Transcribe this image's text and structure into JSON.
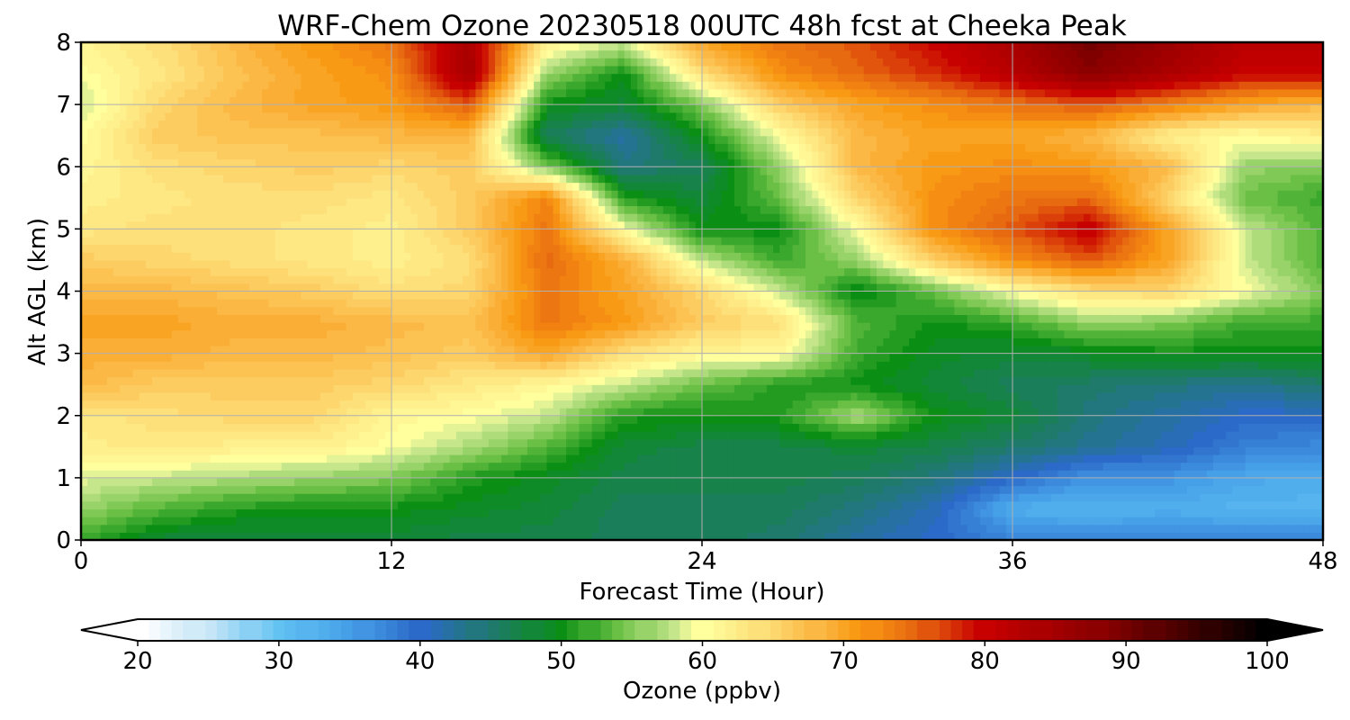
{
  "chart_data": {
    "type": "heatmap",
    "title": "WRF-Chem Ozone  20230518 00UTC 48h fcst at Cheeka Peak",
    "xlabel": "Forecast Time (Hour)",
    "ylabel": "Alt AGL (km)",
    "xlim": [
      0,
      48
    ],
    "ylim": [
      0,
      8
    ],
    "x_ticks": [
      "0",
      "12",
      "24",
      "36",
      "48"
    ],
    "y_ticks": [
      "0",
      "1",
      "2",
      "3",
      "4",
      "5",
      "6",
      "7",
      "8"
    ],
    "grid": true,
    "colorbar": {
      "label": "Ozone  (ppbv)",
      "range": [
        20,
        100
      ],
      "extend": "both",
      "ticks": [
        "20",
        "30",
        "40",
        "50",
        "60",
        "70",
        "80",
        "90",
        "100"
      ],
      "palette": [
        {
          "value": 20,
          "color": "#ffffff"
        },
        {
          "value": 25,
          "color": "#c6e6f7"
        },
        {
          "value": 30,
          "color": "#62c2f2"
        },
        {
          "value": 35,
          "color": "#46a0e8"
        },
        {
          "value": 40,
          "color": "#2c6ac9"
        },
        {
          "value": 45,
          "color": "#1f7a6c"
        },
        {
          "value": 50,
          "color": "#0a8f14"
        },
        {
          "value": 54,
          "color": "#6abf45"
        },
        {
          "value": 58,
          "color": "#c6e68c"
        },
        {
          "value": 60,
          "color": "#ffff9e"
        },
        {
          "value": 64,
          "color": "#fde07a"
        },
        {
          "value": 68,
          "color": "#fbb845"
        },
        {
          "value": 71,
          "color": "#f99a14"
        },
        {
          "value": 75,
          "color": "#e86a10"
        },
        {
          "value": 80,
          "color": "#c70000"
        },
        {
          "value": 88,
          "color": "#8c0000"
        },
        {
          "value": 95,
          "color": "#3a0000"
        },
        {
          "value": 100,
          "color": "#000000"
        }
      ]
    },
    "x": [
      0,
      3,
      6,
      9,
      12,
      15,
      18,
      21,
      24,
      27,
      30,
      33,
      36,
      39,
      42,
      45,
      48
    ],
    "y": [
      0,
      0.5,
      1,
      1.5,
      2,
      2.5,
      3,
      3.5,
      4,
      4.5,
      5,
      5.5,
      6,
      6.5,
      7,
      7.5,
      8
    ],
    "z": [
      [
        52,
        48,
        47,
        48,
        48,
        47,
        47,
        46,
        46,
        45,
        42,
        40,
        38,
        38,
        38,
        38,
        38
      ],
      [
        56,
        53,
        51,
        50,
        50,
        49,
        48,
        46,
        46,
        46,
        44,
        41,
        33,
        32,
        33,
        32,
        32
      ],
      [
        59,
        58,
        57,
        56,
        55,
        51,
        49,
        47,
        47,
        47,
        46,
        44,
        40,
        36,
        36,
        34,
        33
      ],
      [
        62,
        63,
        62,
        62,
        60,
        57,
        53,
        48,
        47,
        47,
        48,
        47,
        45,
        43,
        41,
        38,
        37
      ],
      [
        63,
        64,
        65,
        65,
        61,
        60,
        58,
        51,
        50,
        51,
        57,
        50,
        48,
        44,
        42,
        40,
        40
      ],
      [
        68,
        66,
        66,
        66,
        65,
        63,
        61,
        58,
        54,
        51,
        50,
        48,
        46,
        45,
        44,
        43,
        45
      ],
      [
        69,
        69,
        68,
        68,
        67,
        66,
        70,
        64,
        61,
        61,
        52,
        49,
        48,
        49,
        50,
        50,
        50
      ],
      [
        70,
        70,
        69,
        69,
        68,
        67,
        74,
        71,
        66,
        64,
        53,
        50,
        52,
        56,
        55,
        52,
        52
      ],
      [
        68,
        68,
        67,
        66,
        64,
        65,
        74,
        70,
        65,
        58,
        49,
        54,
        60,
        64,
        65,
        60,
        55
      ],
      [
        66,
        65,
        64,
        63,
        62,
        64,
        75,
        69,
        58,
        52,
        56,
        66,
        72,
        76,
        70,
        58,
        53
      ],
      [
        63,
        64,
        64,
        63,
        62,
        66,
        74,
        60,
        50,
        50,
        60,
        72,
        76,
        81,
        70,
        58,
        53
      ],
      [
        62,
        63,
        64,
        64,
        63,
        66,
        73,
        51,
        48,
        54,
        65,
        72,
        74,
        75,
        65,
        54,
        52
      ],
      [
        61,
        64,
        65,
        66,
        65,
        66,
        55,
        44,
        46,
        56,
        68,
        71,
        72,
        71,
        68,
        56,
        55
      ],
      [
        60,
        66,
        67,
        67,
        68,
        68,
        46,
        42,
        50,
        60,
        68,
        70,
        70,
        68,
        62,
        60,
        62
      ],
      [
        58,
        65,
        68,
        70,
        71,
        76,
        50,
        48,
        55,
        66,
        70,
        72,
        74,
        76,
        73,
        70,
        68
      ],
      [
        60,
        63,
        67,
        70,
        72,
        85,
        56,
        50,
        64,
        72,
        75,
        78,
        82,
        88,
        84,
        80,
        80
      ],
      [
        61,
        64,
        68,
        71,
        74,
        84,
        62,
        58,
        70,
        74,
        76,
        80,
        84,
        90,
        86,
        82,
        82
      ]
    ]
  }
}
